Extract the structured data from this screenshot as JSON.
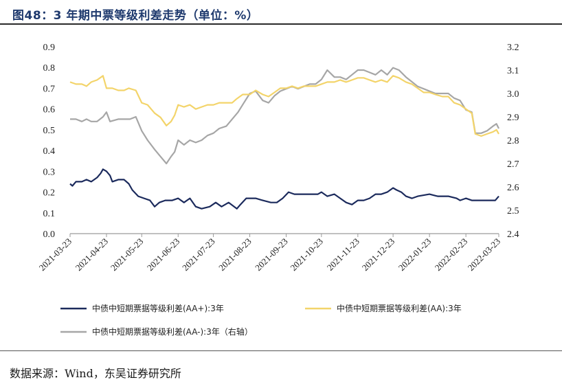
{
  "figure": {
    "title": "图48：3 年期中票等级利差走势（单位：%）",
    "source": "数据来源：Wind，东吴证券研究所"
  },
  "chart_data": {
    "type": "line",
    "title": "图48：3 年期中票等级利差走势（单位：%）",
    "xlabel": "",
    "ylabel": "",
    "y_left": {
      "min": 0.0,
      "max": 0.9,
      "step": 0.1,
      "ticks": [
        "0.0",
        "0.1",
        "0.2",
        "0.3",
        "0.4",
        "0.5",
        "0.6",
        "0.7",
        "0.8",
        "0.9"
      ]
    },
    "y_right": {
      "min": 2.4,
      "max": 3.2,
      "step": 0.1,
      "ticks": [
        "2.4",
        "2.5",
        "2.6",
        "2.7",
        "2.8",
        "2.9",
        "3.0",
        "3.1",
        "3.2"
      ]
    },
    "x_ticks": [
      "2021-03-23",
      "2021-04-23",
      "2021-05-23",
      "2021-06-23",
      "2021-07-23",
      "2021-08-23",
      "2021-09-23",
      "2021-10-23",
      "2021-11-23",
      "2021-12-23",
      "2022-01-23",
      "2022-02-23",
      "2022-03-23"
    ],
    "grid": false,
    "legend_position": "bottom",
    "series": [
      {
        "name": "中债中短期票据等级利差(AA+):3年",
        "axis": "left",
        "color": "#1b2a5c",
        "points": [
          [
            "2021-03-23",
            0.24
          ],
          [
            "2021-03-25",
            0.23
          ],
          [
            "2021-03-28",
            0.25
          ],
          [
            "2021-04-02",
            0.25
          ],
          [
            "2021-04-06",
            0.26
          ],
          [
            "2021-04-10",
            0.25
          ],
          [
            "2021-04-15",
            0.27
          ],
          [
            "2021-04-18",
            0.29
          ],
          [
            "2021-04-20",
            0.31
          ],
          [
            "2021-04-23",
            0.3
          ],
          [
            "2021-04-26",
            0.28
          ],
          [
            "2021-04-28",
            0.25
          ],
          [
            "2021-05-03",
            0.26
          ],
          [
            "2021-05-08",
            0.26
          ],
          [
            "2021-05-12",
            0.24
          ],
          [
            "2021-05-15",
            0.21
          ],
          [
            "2021-05-20",
            0.18
          ],
          [
            "2021-05-25",
            0.17
          ],
          [
            "2021-05-30",
            0.16
          ],
          [
            "2021-06-03",
            0.13
          ],
          [
            "2021-06-07",
            0.15
          ],
          [
            "2021-06-12",
            0.16
          ],
          [
            "2021-06-18",
            0.16
          ],
          [
            "2021-06-23",
            0.17
          ],
          [
            "2021-06-28",
            0.15
          ],
          [
            "2021-07-03",
            0.17
          ],
          [
            "2021-07-08",
            0.13
          ],
          [
            "2021-07-13",
            0.12
          ],
          [
            "2021-07-20",
            0.13
          ],
          [
            "2021-07-25",
            0.15
          ],
          [
            "2021-07-30",
            0.13
          ],
          [
            "2021-08-05",
            0.15
          ],
          [
            "2021-08-12",
            0.12
          ],
          [
            "2021-08-15",
            0.14
          ],
          [
            "2021-08-20",
            0.17
          ],
          [
            "2021-08-28",
            0.17
          ],
          [
            "2021-09-03",
            0.16
          ],
          [
            "2021-09-10",
            0.15
          ],
          [
            "2021-09-15",
            0.15
          ],
          [
            "2021-09-20",
            0.17
          ],
          [
            "2021-09-25",
            0.2
          ],
          [
            "2021-09-30",
            0.19
          ],
          [
            "2021-10-10",
            0.19
          ],
          [
            "2021-10-20",
            0.19
          ],
          [
            "2021-10-23",
            0.2
          ],
          [
            "2021-10-28",
            0.18
          ],
          [
            "2021-11-03",
            0.19
          ],
          [
            "2021-11-08",
            0.17
          ],
          [
            "2021-11-13",
            0.15
          ],
          [
            "2021-11-18",
            0.14
          ],
          [
            "2021-11-23",
            0.16
          ],
          [
            "2021-11-28",
            0.16
          ],
          [
            "2021-12-03",
            0.17
          ],
          [
            "2021-12-08",
            0.19
          ],
          [
            "2021-12-13",
            0.19
          ],
          [
            "2021-12-18",
            0.2
          ],
          [
            "2021-12-23",
            0.22
          ],
          [
            "2021-12-26",
            0.21
          ],
          [
            "2021-12-30",
            0.2
          ],
          [
            "2022-01-03",
            0.18
          ],
          [
            "2022-01-08",
            0.17
          ],
          [
            "2022-01-13",
            0.18
          ],
          [
            "2022-01-23",
            0.19
          ],
          [
            "2022-01-30",
            0.18
          ],
          [
            "2022-02-08",
            0.18
          ],
          [
            "2022-02-15",
            0.17
          ],
          [
            "2022-02-18",
            0.16
          ],
          [
            "2022-02-23",
            0.17
          ],
          [
            "2022-02-28",
            0.16
          ],
          [
            "2022-03-08",
            0.16
          ],
          [
            "2022-03-15",
            0.16
          ],
          [
            "2022-03-20",
            0.16
          ],
          [
            "2022-03-23",
            0.18
          ]
        ]
      },
      {
        "name": "中债中短期票据等级利差(AA):3年",
        "axis": "left",
        "color": "#f3d46a",
        "points": [
          [
            "2021-03-23",
            0.73
          ],
          [
            "2021-03-28",
            0.72
          ],
          [
            "2021-04-02",
            0.72
          ],
          [
            "2021-04-06",
            0.71
          ],
          [
            "2021-04-10",
            0.73
          ],
          [
            "2021-04-15",
            0.74
          ],
          [
            "2021-04-20",
            0.76
          ],
          [
            "2021-04-23",
            0.7
          ],
          [
            "2021-04-28",
            0.7
          ],
          [
            "2021-05-03",
            0.69
          ],
          [
            "2021-05-08",
            0.69
          ],
          [
            "2021-05-12",
            0.7
          ],
          [
            "2021-05-18",
            0.69
          ],
          [
            "2021-05-23",
            0.63
          ],
          [
            "2021-05-28",
            0.62
          ],
          [
            "2021-06-03",
            0.58
          ],
          [
            "2021-06-08",
            0.56
          ],
          [
            "2021-06-13",
            0.52
          ],
          [
            "2021-06-17",
            0.54
          ],
          [
            "2021-06-20",
            0.57
          ],
          [
            "2021-06-23",
            0.62
          ],
          [
            "2021-06-28",
            0.61
          ],
          [
            "2021-07-03",
            0.62
          ],
          [
            "2021-07-08",
            0.6
          ],
          [
            "2021-07-13",
            0.61
          ],
          [
            "2021-07-18",
            0.62
          ],
          [
            "2021-07-23",
            0.62
          ],
          [
            "2021-07-28",
            0.63
          ],
          [
            "2021-08-03",
            0.63
          ],
          [
            "2021-08-08",
            0.63
          ],
          [
            "2021-08-12",
            0.65
          ],
          [
            "2021-08-17",
            0.67
          ],
          [
            "2021-08-23",
            0.67
          ],
          [
            "2021-08-28",
            0.69
          ],
          [
            "2021-09-03",
            0.67
          ],
          [
            "2021-09-08",
            0.66
          ],
          [
            "2021-09-13",
            0.68
          ],
          [
            "2021-09-18",
            0.7
          ],
          [
            "2021-09-23",
            0.7
          ],
          [
            "2021-09-28",
            0.71
          ],
          [
            "2021-10-03",
            0.7
          ],
          [
            "2021-10-08",
            0.71
          ],
          [
            "2021-10-13",
            0.71
          ],
          [
            "2021-10-18",
            0.71
          ],
          [
            "2021-10-23",
            0.72
          ],
          [
            "2021-10-28",
            0.73
          ],
          [
            "2021-11-03",
            0.73
          ],
          [
            "2021-11-08",
            0.74
          ],
          [
            "2021-11-13",
            0.73
          ],
          [
            "2021-11-18",
            0.74
          ],
          [
            "2021-11-23",
            0.75
          ],
          [
            "2021-11-28",
            0.75
          ],
          [
            "2021-12-03",
            0.74
          ],
          [
            "2021-12-08",
            0.73
          ],
          [
            "2021-12-13",
            0.74
          ],
          [
            "2021-12-18",
            0.73
          ],
          [
            "2021-12-23",
            0.76
          ],
          [
            "2021-12-28",
            0.75
          ],
          [
            "2022-01-03",
            0.73
          ],
          [
            "2022-01-08",
            0.72
          ],
          [
            "2022-01-13",
            0.7
          ],
          [
            "2022-01-18",
            0.68
          ],
          [
            "2022-01-23",
            0.68
          ],
          [
            "2022-01-28",
            0.67
          ],
          [
            "2022-02-03",
            0.66
          ],
          [
            "2022-02-08",
            0.66
          ],
          [
            "2022-02-13",
            0.63
          ],
          [
            "2022-02-18",
            0.62
          ],
          [
            "2022-02-23",
            0.6
          ],
          [
            "2022-02-28",
            0.58
          ],
          [
            "2022-03-03",
            0.48
          ],
          [
            "2022-03-08",
            0.47
          ],
          [
            "2022-03-13",
            0.48
          ],
          [
            "2022-03-18",
            0.49
          ],
          [
            "2022-03-21",
            0.5
          ],
          [
            "2022-03-23",
            0.48
          ]
        ]
      },
      {
        "name": "中债中短期票据等级利差(AA-):3年（右轴）",
        "axis": "right",
        "color": "#a6a6a6",
        "points": [
          [
            "2021-03-23",
            2.89
          ],
          [
            "2021-03-28",
            2.89
          ],
          [
            "2021-04-02",
            2.88
          ],
          [
            "2021-04-06",
            2.89
          ],
          [
            "2021-04-10",
            2.88
          ],
          [
            "2021-04-15",
            2.88
          ],
          [
            "2021-04-20",
            2.9
          ],
          [
            "2021-04-23",
            2.92
          ],
          [
            "2021-04-26",
            2.88
          ],
          [
            "2021-05-03",
            2.89
          ],
          [
            "2021-05-08",
            2.89
          ],
          [
            "2021-05-13",
            2.89
          ],
          [
            "2021-05-18",
            2.9
          ],
          [
            "2021-05-23",
            2.84
          ],
          [
            "2021-05-28",
            2.8
          ],
          [
            "2021-06-03",
            2.76
          ],
          [
            "2021-06-08",
            2.73
          ],
          [
            "2021-06-13",
            2.7
          ],
          [
            "2021-06-17",
            2.73
          ],
          [
            "2021-06-20",
            2.75
          ],
          [
            "2021-06-23",
            2.8
          ],
          [
            "2021-06-28",
            2.78
          ],
          [
            "2021-07-03",
            2.8
          ],
          [
            "2021-07-08",
            2.79
          ],
          [
            "2021-07-13",
            2.8
          ],
          [
            "2021-07-18",
            2.82
          ],
          [
            "2021-07-23",
            2.83
          ],
          [
            "2021-07-28",
            2.85
          ],
          [
            "2021-08-03",
            2.86
          ],
          [
            "2021-08-08",
            2.89
          ],
          [
            "2021-08-13",
            2.92
          ],
          [
            "2021-08-18",
            2.96
          ],
          [
            "2021-08-23",
            3.0
          ],
          [
            "2021-08-28",
            3.01
          ],
          [
            "2021-09-03",
            2.97
          ],
          [
            "2021-09-08",
            2.96
          ],
          [
            "2021-09-13",
            2.99
          ],
          [
            "2021-09-18",
            3.01
          ],
          [
            "2021-09-23",
            3.02
          ],
          [
            "2021-09-28",
            3.03
          ],
          [
            "2021-10-03",
            3.02
          ],
          [
            "2021-10-08",
            3.03
          ],
          [
            "2021-10-13",
            3.04
          ],
          [
            "2021-10-18",
            3.04
          ],
          [
            "2021-10-23",
            3.06
          ],
          [
            "2021-10-28",
            3.1
          ],
          [
            "2021-11-03",
            3.07
          ],
          [
            "2021-11-08",
            3.07
          ],
          [
            "2021-11-13",
            3.06
          ],
          [
            "2021-11-18",
            3.08
          ],
          [
            "2021-11-23",
            3.1
          ],
          [
            "2021-11-28",
            3.1
          ],
          [
            "2021-12-03",
            3.09
          ],
          [
            "2021-12-08",
            3.08
          ],
          [
            "2021-12-13",
            3.1
          ],
          [
            "2021-12-18",
            3.08
          ],
          [
            "2021-12-23",
            3.11
          ],
          [
            "2021-12-28",
            3.1
          ],
          [
            "2022-01-03",
            3.07
          ],
          [
            "2022-01-08",
            3.05
          ],
          [
            "2022-01-13",
            3.03
          ],
          [
            "2022-01-18",
            3.02
          ],
          [
            "2022-01-23",
            3.01
          ],
          [
            "2022-01-28",
            3.0
          ],
          [
            "2022-02-03",
            3.0
          ],
          [
            "2022-02-08",
            3.0
          ],
          [
            "2022-02-13",
            2.98
          ],
          [
            "2022-02-18",
            2.97
          ],
          [
            "2022-02-23",
            2.93
          ],
          [
            "2022-02-28",
            2.92
          ],
          [
            "2022-03-03",
            2.83
          ],
          [
            "2022-03-08",
            2.83
          ],
          [
            "2022-03-13",
            2.84
          ],
          [
            "2022-03-18",
            2.86
          ],
          [
            "2022-03-21",
            2.87
          ],
          [
            "2022-03-23",
            2.85
          ]
        ]
      }
    ]
  }
}
